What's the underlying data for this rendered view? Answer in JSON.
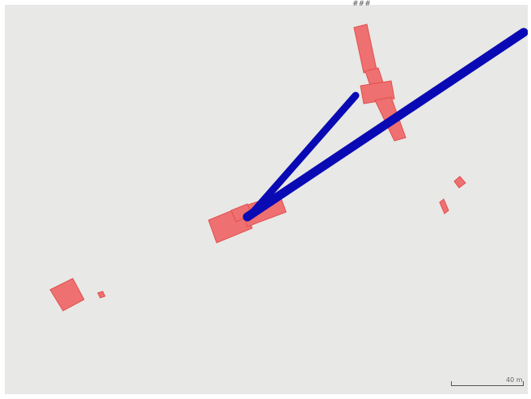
{
  "map": {
    "top_label": "###",
    "scale_label": "40 m",
    "colors": {
      "background": "#e8e8e6",
      "building_fill": "#f06a6a",
      "building_stroke": "#e04848",
      "route": "#0a0ab4"
    }
  }
}
